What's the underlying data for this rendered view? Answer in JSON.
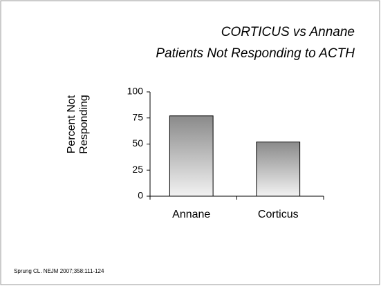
{
  "chart_data": {
    "type": "bar",
    "title": [
      "CORTICUS vs Annane",
      "Patients Not Responding to ACTH"
    ],
    "ylabel": [
      "Percent  Not",
      "Responding"
    ],
    "categories": [
      "Annane",
      "Corticus"
    ],
    "values": [
      77,
      52
    ],
    "gradient": [
      "#8a8a8a",
      "#f2f2f2"
    ],
    "ylim": [
      0,
      100
    ],
    "yticks": [
      0,
      25,
      50,
      75,
      100
    ],
    "source": "Sprung CL.  NEJM 2007;358:111-124"
  }
}
